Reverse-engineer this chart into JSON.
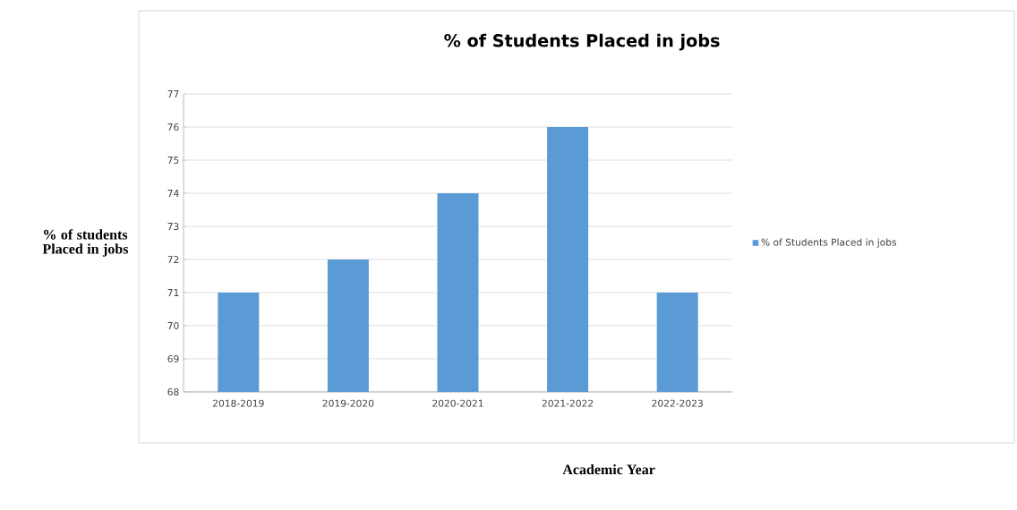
{
  "chart_data": {
    "type": "bar",
    "title": "% of Students Placed in jobs",
    "xlabel": "Academic Year",
    "ylabel": "% of students Placed in jobs",
    "categories": [
      "2018-2019",
      "2019-2020",
      "2020-2021",
      "2021-2022",
      "2022-2023"
    ],
    "series": [
      {
        "name": "% of Students Placed in jobs",
        "color": "#5b9bd5",
        "values": [
          71,
          72,
          74,
          76,
          71
        ]
      }
    ],
    "ylim": [
      68,
      77
    ],
    "yticks": [
      68,
      69,
      70,
      71,
      72,
      73,
      74,
      75,
      76,
      77
    ],
    "grid": "y",
    "legend": "right"
  }
}
